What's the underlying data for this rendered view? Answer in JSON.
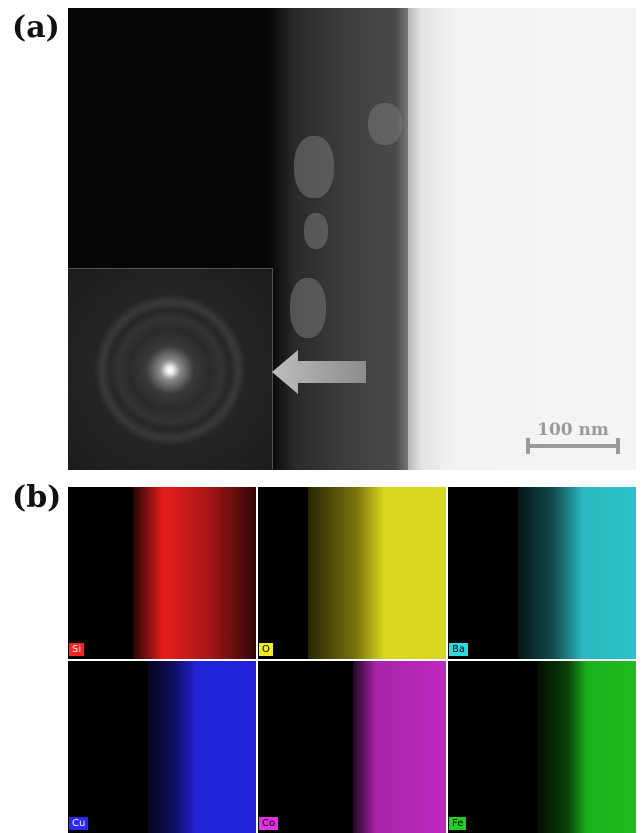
{
  "panels": {
    "a": {
      "label": "(a)",
      "scale_bar": "100 nm"
    },
    "b": {
      "label": "(b)",
      "maps": [
        {
          "element": "Si",
          "color": "#ff2020",
          "tag_text_color": "#ffffff"
        },
        {
          "element": "O",
          "color": "#f0ee20",
          "tag_text_color": "#000000"
        },
        {
          "element": "Ba",
          "color": "#30d8e0",
          "tag_text_color": "#000000"
        },
        {
          "element": "Cu",
          "color": "#2828ff",
          "tag_text_color": "#ffffff"
        },
        {
          "element": "Co",
          "color": "#e030e0",
          "tag_text_color": "#000000"
        },
        {
          "element": "Fe",
          "color": "#20d020",
          "tag_text_color": "#000000"
        }
      ]
    }
  }
}
